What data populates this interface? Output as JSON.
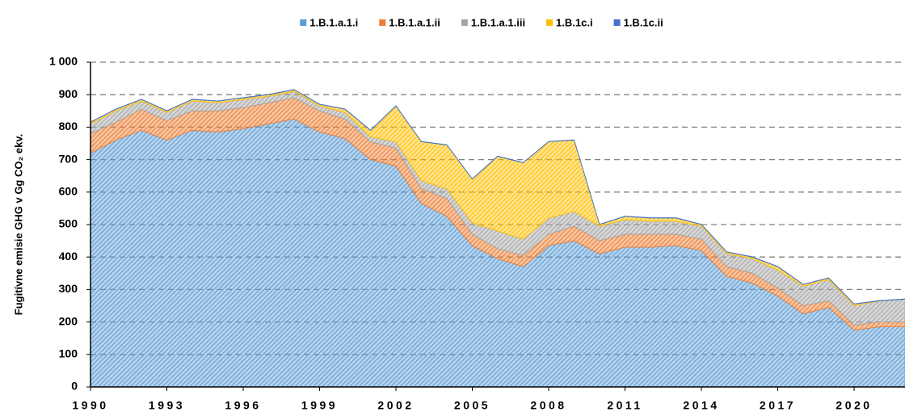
{
  "chart_data": {
    "type": "stacked_area",
    "y_label": "Fugitívne emisie GHG v Gg CO₂ ekv.",
    "x": [
      1990,
      1991,
      1992,
      1993,
      1994,
      1995,
      1996,
      1997,
      1998,
      1999,
      2000,
      2001,
      2002,
      2003,
      2004,
      2005,
      2006,
      2007,
      2008,
      2009,
      2010,
      2011,
      2012,
      2013,
      2014,
      2015,
      2016,
      2017,
      2018,
      2019,
      2020,
      2021,
      2022
    ],
    "xlim": [
      1990,
      2022
    ],
    "xticks": [
      1990,
      1993,
      1996,
      1999,
      2002,
      2005,
      2008,
      2011,
      2014,
      2017,
      2020
    ],
    "ylim": [
      0,
      1000
    ],
    "yticks": [
      0,
      100,
      200,
      300,
      400,
      500,
      600,
      700,
      800,
      900,
      {
        "value": 1000,
        "label": "1 000"
      }
    ],
    "grid": true,
    "legend": "top",
    "series": [
      {
        "name": "1.B.1.a.1.i",
        "color": "#5b9bd5",
        "values": [
          720,
          760,
          790,
          760,
          790,
          785,
          795,
          810,
          825,
          785,
          765,
          700,
          680,
          565,
          525,
          435,
          395,
          370,
          435,
          450,
          410,
          430,
          430,
          435,
          420,
          340,
          320,
          280,
          225,
          245,
          175,
          185,
          185
        ]
      },
      {
        "name": "1.B.1.a.1.ii",
        "color": "#ed7d31",
        "values": [
          60,
          55,
          65,
          60,
          60,
          65,
          65,
          65,
          65,
          65,
          60,
          55,
          55,
          45,
          55,
          35,
          30,
          35,
          35,
          45,
          40,
          40,
          40,
          35,
          35,
          30,
          30,
          25,
          25,
          20,
          15,
          15,
          15
        ]
      },
      {
        "name": "1.B.1.a.1.iii",
        "color": "#a5a5a5",
        "values": [
          30,
          35,
          25,
          25,
          30,
          25,
          25,
          20,
          20,
          15,
          20,
          15,
          20,
          25,
          30,
          35,
          55,
          50,
          50,
          45,
          45,
          45,
          40,
          40,
          40,
          40,
          45,
          55,
          60,
          65,
          60,
          65,
          70
        ]
      },
      {
        "name": "1.B.1c.i",
        "color": "#ffc000",
        "values": [
          5,
          5,
          5,
          5,
          5,
          5,
          5,
          5,
          5,
          5,
          10,
          20,
          110,
          120,
          135,
          135,
          230,
          235,
          235,
          220,
          5,
          10,
          10,
          10,
          5,
          5,
          5,
          10,
          5,
          5,
          5,
          0,
          0
        ]
      },
      {
        "name": "1.B.1c.ii",
        "color": "#4472c4",
        "values": [
          1,
          1,
          1,
          1,
          1,
          1,
          1,
          1,
          1,
          1,
          1,
          1,
          1,
          1,
          1,
          1,
          1,
          1,
          1,
          1,
          1,
          1,
          1,
          1,
          1,
          1,
          1,
          1,
          1,
          1,
          1,
          1,
          1
        ]
      }
    ]
  }
}
